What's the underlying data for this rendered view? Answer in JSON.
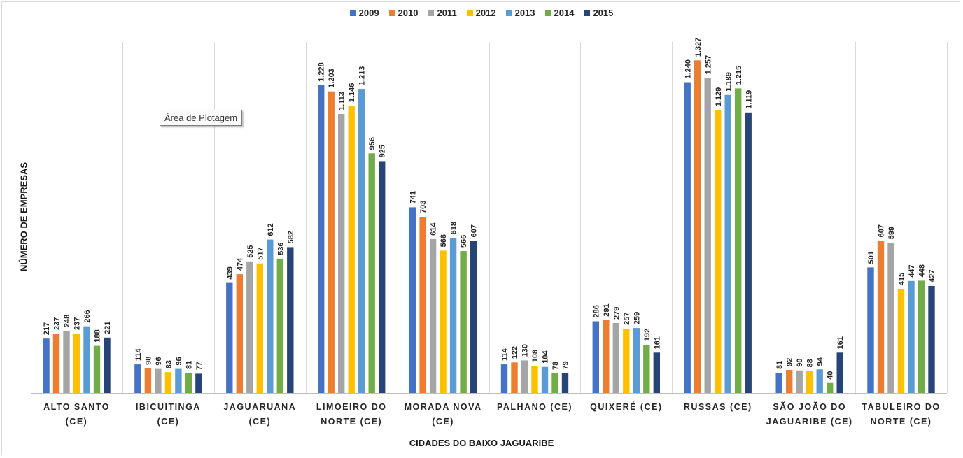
{
  "chart_data": {
    "type": "bar",
    "xlabel": "CIDADES DO BAIXO JAGUARIBE",
    "ylabel": "NÚMERO DE EMPRESAS",
    "ylim": [
      0,
      1400
    ],
    "legend_position": "top-center",
    "grid": "vertical separators between categories",
    "categories": [
      [
        "ALTO SANTO",
        "(CE)"
      ],
      [
        "IBICUITINGA",
        "(CE)"
      ],
      [
        "JAGUARUANA",
        "(CE)"
      ],
      [
        "LIMOEIRO DO",
        "NORTE (CE)"
      ],
      [
        "MORADA NOVA",
        "(CE)"
      ],
      [
        "PALHANO (CE)"
      ],
      [
        "QUIXERÉ (CE)"
      ],
      [
        "RUSSAS (CE)"
      ],
      [
        "SÃO JOÃO DO",
        "JAGUARIBE (CE)"
      ],
      [
        "TABULEIRO DO",
        "NORTE (CE)"
      ]
    ],
    "series": [
      {
        "name": "2009",
        "color": "#4472c4",
        "values": [
          217,
          114,
          439,
          1228,
          741,
          114,
          286,
          1240,
          81,
          501
        ],
        "labels": [
          "217",
          "114",
          "439",
          "1.228",
          "741",
          "114",
          "286",
          "1.240",
          "81",
          "501"
        ]
      },
      {
        "name": "2010",
        "color": "#ed7d31",
        "values": [
          237,
          98,
          474,
          1203,
          703,
          122,
          291,
          1327,
          92,
          607
        ],
        "labels": [
          "237",
          "98",
          "474",
          "1.203",
          "703",
          "122",
          "291",
          "1.327",
          "92",
          "607"
        ]
      },
      {
        "name": "2011",
        "color": "#a5a5a5",
        "values": [
          248,
          96,
          525,
          1113,
          614,
          130,
          279,
          1257,
          90,
          599
        ],
        "labels": [
          "248",
          "96",
          "525",
          "1.113",
          "614",
          "130",
          "279",
          "1.257",
          "90",
          "599"
        ]
      },
      {
        "name": "2012",
        "color": "#ffc000",
        "values": [
          237,
          83,
          517,
          1146,
          568,
          108,
          257,
          1129,
          88,
          415
        ],
        "labels": [
          "237",
          "83",
          "517",
          "1.146",
          "568",
          "108",
          "257",
          "1.129",
          "88",
          "415"
        ]
      },
      {
        "name": "2013",
        "color": "#5b9bd5",
        "values": [
          266,
          96,
          612,
          1213,
          618,
          104,
          259,
          1189,
          94,
          447
        ],
        "labels": [
          "266",
          "96",
          "612",
          "1.213",
          "618",
          "104",
          "259",
          "1.189",
          "94",
          "447"
        ]
      },
      {
        "name": "2014",
        "color": "#70ad47",
        "values": [
          188,
          81,
          536,
          956,
          566,
          78,
          192,
          1215,
          40,
          448
        ],
        "labels": [
          "188",
          "81",
          "536",
          "956",
          "566",
          "78",
          "192",
          "1.215",
          "40",
          "448"
        ]
      },
      {
        "name": "2015",
        "color": "#264478",
        "values": [
          221,
          77,
          582,
          925,
          607,
          79,
          161,
          1119,
          161,
          427
        ],
        "labels": [
          "221",
          "77",
          "582",
          "925",
          "607",
          "79",
          "161",
          "1.119",
          "161",
          "427"
        ]
      }
    ]
  },
  "tooltip": {
    "text": "Área de Plotagem"
  }
}
